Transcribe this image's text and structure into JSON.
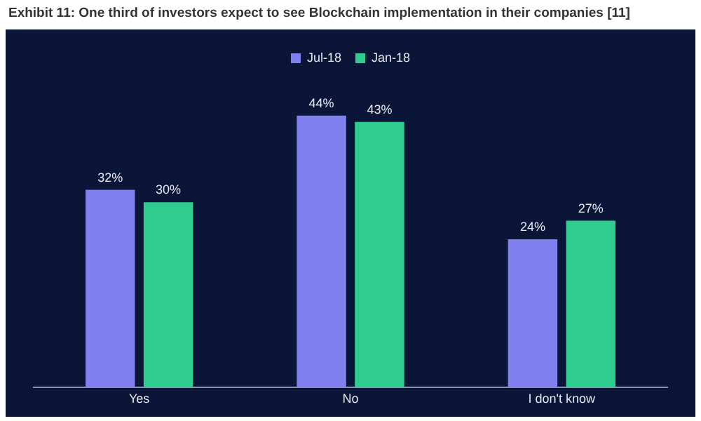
{
  "chart_data": {
    "type": "bar",
    "title": "Exhibit 11: One third of investors expect to see Blockchain implementation in their companies [11]",
    "categories": [
      "Yes",
      "No",
      "I don't know"
    ],
    "series": [
      {
        "name": "Jul-18",
        "color": "#8080f0",
        "values": [
          32,
          44,
          24
        ],
        "value_labels": [
          "32%",
          "44%",
          "24%"
        ]
      },
      {
        "name": "Jan-18",
        "color": "#2ecc8e",
        "values": [
          30,
          43,
          27
        ],
        "value_labels": [
          "30%",
          "43%",
          "27%"
        ]
      }
    ],
    "legend": "top",
    "grid": false
  }
}
